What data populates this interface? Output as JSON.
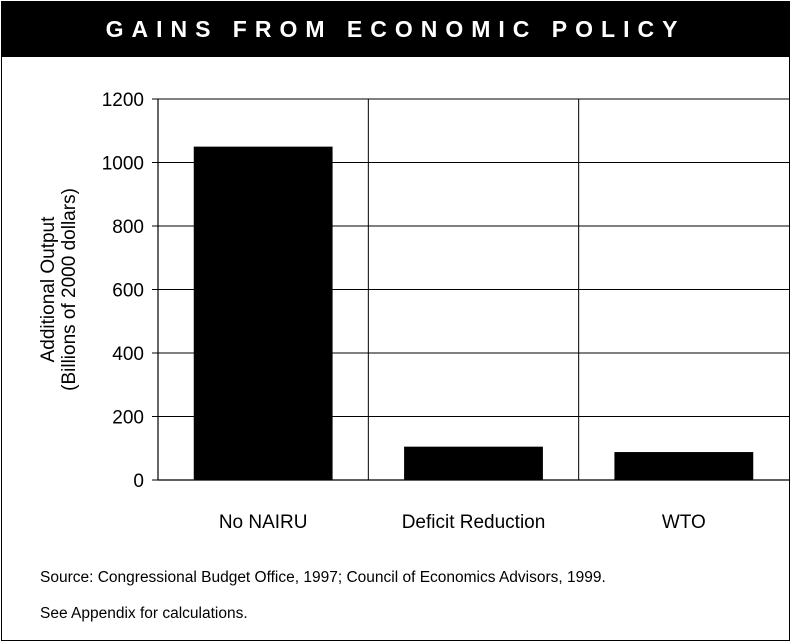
{
  "title": "GAINS FROM ECONOMIC POLICY",
  "source_lines": [
    "Source: Congressional Budget Office, 1997; Council of Economics Advisors, 1999.",
    "See Appendix for calculations."
  ],
  "chart_data": {
    "type": "bar",
    "categories": [
      "No NAIRU",
      "Deficit Reduction",
      "WTO"
    ],
    "values": [
      1050,
      105,
      88
    ],
    "ylabel_lines": [
      "Additional Output",
      "(Billions of 2000 dollars)"
    ],
    "xlabel": "",
    "ylim": [
      0,
      1200
    ],
    "yticks": [
      0,
      200,
      400,
      600,
      800,
      1000,
      1200
    ],
    "grid": true,
    "bar_color": "#000000"
  }
}
